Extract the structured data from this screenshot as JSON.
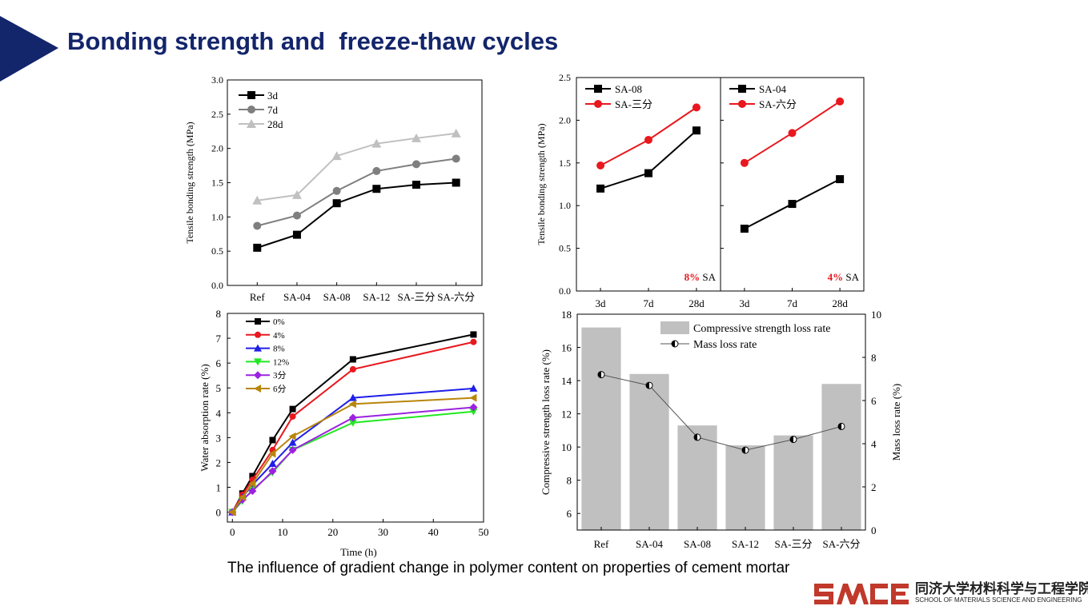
{
  "title": "Bonding strength and  freeze-thaw cycles",
  "caption": "The influence of gradient change in polymer content on properties of cement mortar",
  "logo": {
    "mark": "SMSE",
    "cn": "同济大学材料科学与工程学院",
    "en": "SCHOOL OF MATERIALS SCIENCE AND ENGINEERING",
    "color": "#c0392b"
  },
  "colors": {
    "title": "#13256b",
    "accent_red": "#e8181e"
  },
  "chart_data": [
    {
      "id": "c1",
      "type": "line",
      "ylabel": "Tensile bonding strength (MPa)",
      "xlabel": "",
      "categories": [
        "Ref",
        "SA-04",
        "SA-08",
        "SA-12",
        "SA-三分",
        "SA-六分"
      ],
      "ylim": [
        0,
        3.0
      ],
      "yticks": [
        "0.0",
        "0.5",
        "1.0",
        "1.5",
        "2.0",
        "2.5",
        "3.0"
      ],
      "legend_position": "top-left",
      "series": [
        {
          "name": "3d",
          "color": "#000000",
          "marker": "square",
          "values": [
            0.55,
            0.74,
            1.2,
            1.41,
            1.47,
            1.5
          ]
        },
        {
          "name": "7d",
          "color": "#7f7f7f",
          "marker": "circle",
          "values": [
            0.87,
            1.02,
            1.38,
            1.67,
            1.77,
            1.85
          ]
        },
        {
          "name": "28d",
          "color": "#c0c0c0",
          "marker": "triangle",
          "values": [
            1.24,
            1.32,
            1.89,
            2.07,
            2.15,
            2.22
          ]
        }
      ]
    },
    {
      "id": "c2",
      "type": "line",
      "ylabel": "Tensile bonding strength (MPa)",
      "ylim": [
        0,
        2.5
      ],
      "yticks": [
        "0.0",
        "0.5",
        "1.0",
        "1.5",
        "2.0",
        "2.5"
      ],
      "panels": [
        {
          "categories": [
            "3d",
            "7d",
            "28d"
          ],
          "annotation_pct": "8%",
          "annotation_unit": " SA",
          "series": [
            {
              "name": "SA-08",
              "color": "#000000",
              "marker": "square",
              "values": [
                1.2,
                1.38,
                1.88
              ]
            },
            {
              "name": "SA-三分",
              "color": "#e8181e",
              "marker": "circle",
              "values": [
                1.47,
                1.77,
                2.15
              ]
            }
          ]
        },
        {
          "categories": [
            "3d",
            "7d",
            "28d"
          ],
          "annotation_pct": "4%",
          "annotation_unit": " SA",
          "series": [
            {
              "name": "SA-04",
              "color": "#000000",
              "marker": "square",
              "values": [
                0.73,
                1.02,
                1.31
              ]
            },
            {
              "name": "SA-六分",
              "color": "#e8181e",
              "marker": "circle",
              "values": [
                1.5,
                1.85,
                2.22
              ]
            }
          ]
        }
      ]
    },
    {
      "id": "c3",
      "type": "line",
      "xlabel": "Time (h)",
      "ylabel": "Water absorption rate (%)",
      "xlim": [
        0,
        50
      ],
      "ylim": [
        0,
        8
      ],
      "xticks": [
        "0",
        "10",
        "20",
        "30",
        "40",
        "50"
      ],
      "yticks": [
        "0",
        "1",
        "2",
        "3",
        "4",
        "5",
        "6",
        "7",
        "8"
      ],
      "x": [
        0,
        2,
        4,
        8,
        12,
        24,
        48
      ],
      "series": [
        {
          "name": "0%",
          "color": "#000000",
          "marker": "square",
          "values": [
            0,
            0.75,
            1.45,
            2.9,
            4.15,
            6.15,
            7.15
          ]
        },
        {
          "name": "4%",
          "color": "#e8181e",
          "marker": "circle",
          "values": [
            0,
            0.7,
            1.3,
            2.5,
            3.85,
            5.75,
            6.85
          ]
        },
        {
          "name": "8%",
          "color": "#1f1fe8",
          "marker": "triangle",
          "values": [
            0,
            0.6,
            1.1,
            1.95,
            2.8,
            4.6,
            4.98
          ]
        },
        {
          "name": "12%",
          "color": "#22e822",
          "marker": "triangle-down",
          "values": [
            0,
            0.45,
            0.9,
            1.6,
            2.5,
            3.6,
            4.05
          ]
        },
        {
          "name": "3分",
          "color": "#9b22e0",
          "marker": "diamond",
          "values": [
            0,
            0.5,
            0.85,
            1.65,
            2.5,
            3.8,
            4.22
          ]
        },
        {
          "name": "6分",
          "color": "#b8860b",
          "marker": "triangle-left",
          "values": [
            0,
            0.6,
            1.15,
            2.35,
            3.05,
            4.35,
            4.6
          ]
        }
      ]
    },
    {
      "id": "c4",
      "type": "bar",
      "ylabel": "Compressive strength loss rate (%)",
      "y2label": "Mass loss rate (%)",
      "categories": [
        "Ref",
        "SA-04",
        "SA-08",
        "SA-12",
        "SA-三分",
        "SA-六分"
      ],
      "ylim": [
        5,
        18
      ],
      "y2lim": [
        0,
        10
      ],
      "yticks": [
        "6",
        "8",
        "10",
        "12",
        "14",
        "16",
        "18"
      ],
      "y2ticks": [
        "0",
        "2",
        "4",
        "6",
        "8",
        "10"
      ],
      "bars": {
        "name": "Compressive strength loss rate",
        "color": "#c0c0c0",
        "values": [
          17.2,
          14.4,
          11.3,
          10.1,
          10.7,
          13.8
        ]
      },
      "line": {
        "name": "Mass loss rate",
        "color": "#555555",
        "marker": "half-circle",
        "values": [
          7.2,
          6.7,
          4.3,
          3.7,
          4.2,
          4.8
        ]
      }
    }
  ]
}
